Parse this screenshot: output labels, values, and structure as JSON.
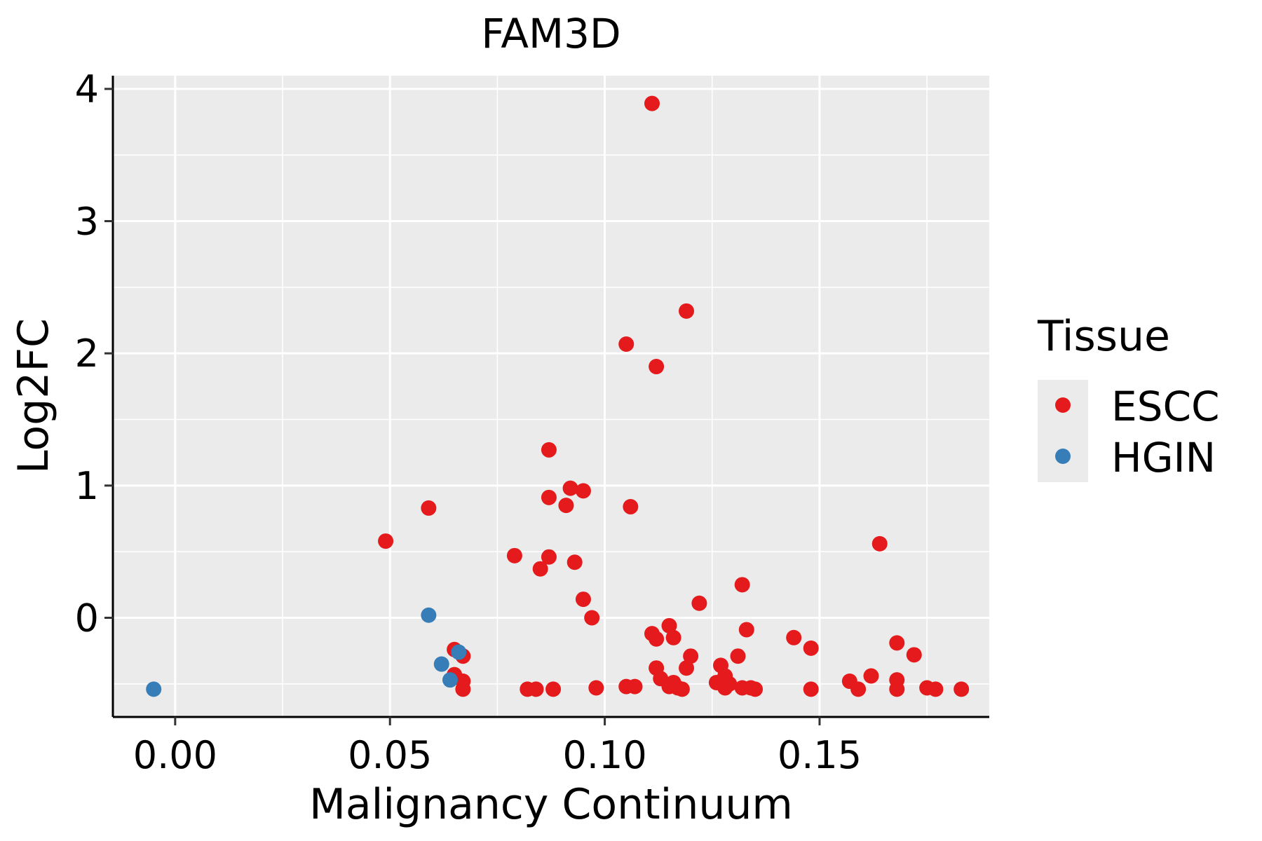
{
  "chart_data": {
    "type": "scatter",
    "title": "FAM3D",
    "xlabel": "Malignancy Continuum",
    "ylabel": "Log2FC",
    "xlim": [
      -0.0145,
      0.1895
    ],
    "ylim": [
      -0.75,
      4.1
    ],
    "x_ticks": [
      0.0,
      0.05,
      0.1,
      0.15
    ],
    "x_tick_labels": [
      "0.00",
      "0.05",
      "0.10",
      "0.15"
    ],
    "y_ticks": [
      0,
      1,
      2,
      3,
      4
    ],
    "y_tick_labels": [
      "0",
      "1",
      "2",
      "3",
      "4"
    ],
    "grid": true,
    "legend": {
      "title": "Tissue",
      "position": "right",
      "entries": [
        {
          "label": "ESCC",
          "color": "#E41A1C"
        },
        {
          "label": "HGIN",
          "color": "#377EB8"
        }
      ]
    },
    "series": [
      {
        "name": "ESCC",
        "color": "#E41A1C",
        "points": [
          [
            0.049,
            0.58
          ],
          [
            0.059,
            0.83
          ],
          [
            0.065,
            -0.24
          ],
          [
            0.065,
            -0.43
          ],
          [
            0.067,
            -0.29
          ],
          [
            0.067,
            -0.48
          ],
          [
            0.067,
            -0.54
          ],
          [
            0.079,
            0.47
          ],
          [
            0.082,
            -0.54
          ],
          [
            0.084,
            -0.54
          ],
          [
            0.085,
            0.37
          ],
          [
            0.087,
            1.27
          ],
          [
            0.087,
            0.91
          ],
          [
            0.087,
            0.46
          ],
          [
            0.088,
            -0.54
          ],
          [
            0.091,
            0.85
          ],
          [
            0.092,
            0.98
          ],
          [
            0.093,
            0.42
          ],
          [
            0.095,
            0.96
          ],
          [
            0.095,
            0.14
          ],
          [
            0.097,
            0.0
          ],
          [
            0.098,
            -0.53
          ],
          [
            0.105,
            2.07
          ],
          [
            0.105,
            -0.52
          ],
          [
            0.106,
            0.84
          ],
          [
            0.107,
            -0.52
          ],
          [
            0.111,
            3.89
          ],
          [
            0.111,
            -0.12
          ],
          [
            0.112,
            1.9
          ],
          [
            0.112,
            -0.16
          ],
          [
            0.112,
            -0.38
          ],
          [
            0.113,
            -0.46
          ],
          [
            0.115,
            -0.06
          ],
          [
            0.115,
            -0.52
          ],
          [
            0.116,
            -0.49
          ],
          [
            0.116,
            -0.15
          ],
          [
            0.117,
            -0.53
          ],
          [
            0.118,
            -0.54
          ],
          [
            0.119,
            2.32
          ],
          [
            0.119,
            -0.38
          ],
          [
            0.12,
            -0.29
          ],
          [
            0.122,
            0.11
          ],
          [
            0.126,
            -0.49
          ],
          [
            0.127,
            -0.36
          ],
          [
            0.128,
            -0.53
          ],
          [
            0.128,
            -0.44
          ],
          [
            0.129,
            -0.5
          ],
          [
            0.131,
            -0.29
          ],
          [
            0.132,
            0.25
          ],
          [
            0.132,
            -0.53
          ],
          [
            0.133,
            -0.09
          ],
          [
            0.134,
            -0.53
          ],
          [
            0.135,
            -0.54
          ],
          [
            0.144,
            -0.15
          ],
          [
            0.148,
            -0.23
          ],
          [
            0.148,
            -0.54
          ],
          [
            0.157,
            -0.48
          ],
          [
            0.159,
            -0.54
          ],
          [
            0.162,
            -0.44
          ],
          [
            0.164,
            0.56
          ],
          [
            0.168,
            -0.19
          ],
          [
            0.168,
            -0.47
          ],
          [
            0.168,
            -0.54
          ],
          [
            0.172,
            -0.28
          ],
          [
            0.175,
            -0.53
          ],
          [
            0.177,
            -0.54
          ],
          [
            0.183,
            -0.54
          ]
        ]
      },
      {
        "name": "HGIN",
        "color": "#377EB8",
        "points": [
          [
            -0.005,
            -0.54
          ],
          [
            0.059,
            0.02
          ],
          [
            0.062,
            -0.35
          ],
          [
            0.064,
            -0.47
          ],
          [
            0.066,
            -0.26
          ]
        ]
      }
    ]
  }
}
